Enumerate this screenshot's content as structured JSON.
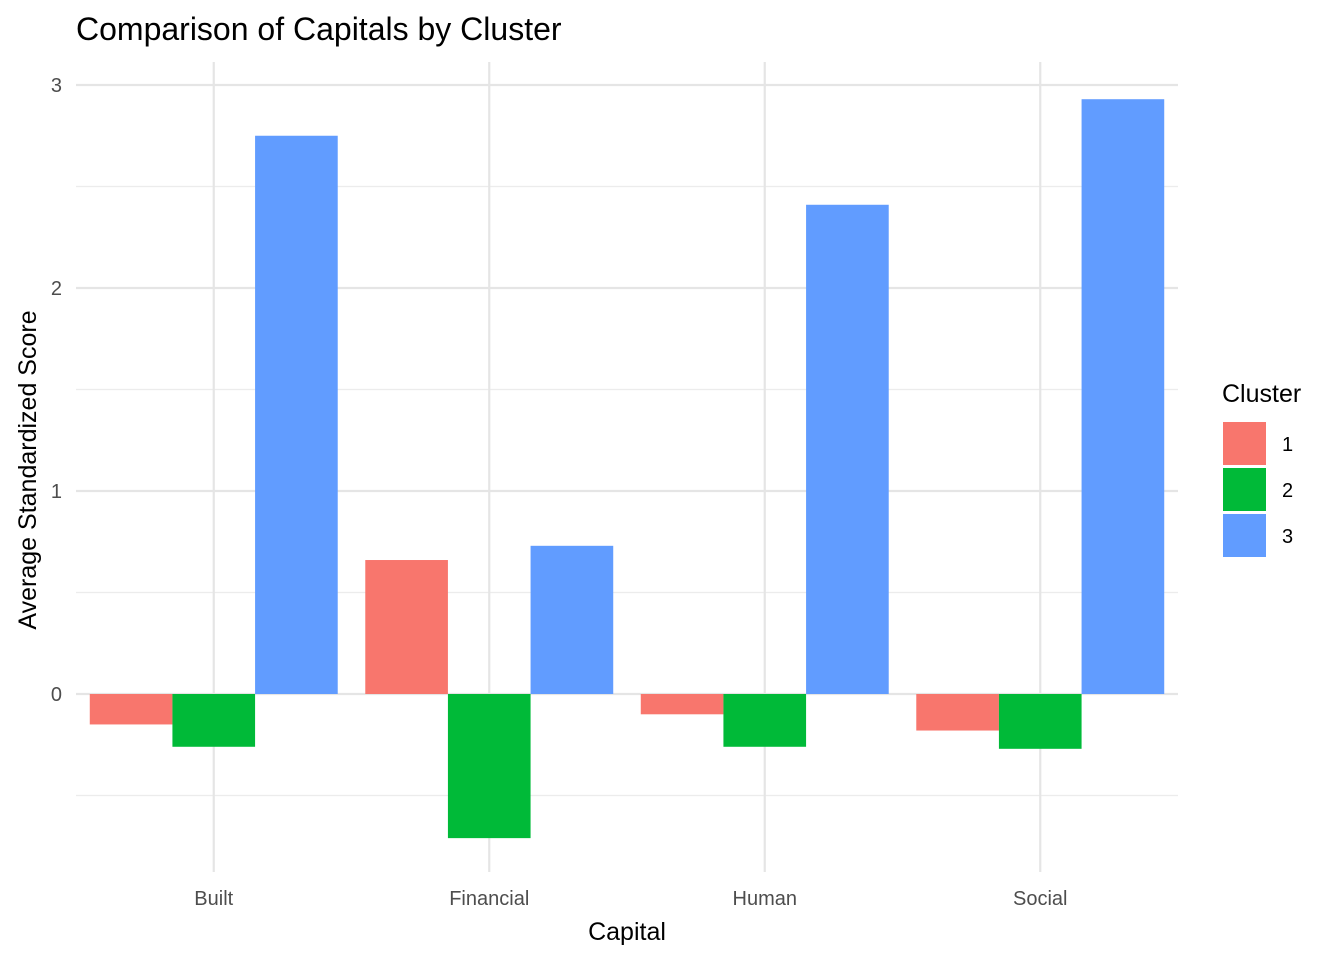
{
  "chart_data": {
    "type": "bar",
    "title": "Comparison of Capitals by Cluster",
    "xlabel": "Capital",
    "ylabel": "Average Standardized Score",
    "categories": [
      "Built",
      "Financial",
      "Human",
      "Social"
    ],
    "series": [
      {
        "name": "1",
        "color": "#F8766D",
        "values": [
          -0.15,
          0.66,
          -0.1,
          -0.18
        ]
      },
      {
        "name": "2",
        "color": "#00BA38",
        "values": [
          -0.26,
          -0.71,
          -0.26,
          -0.27
        ]
      },
      {
        "name": "3",
        "color": "#619CFF",
        "values": [
          2.75,
          0.73,
          2.41,
          2.93
        ]
      }
    ],
    "yticks": [
      0,
      1,
      2,
      3
    ],
    "ylim": [
      -0.87,
      3.11
    ],
    "grid": true,
    "legend": {
      "title": "Cluster",
      "position": "right"
    }
  }
}
